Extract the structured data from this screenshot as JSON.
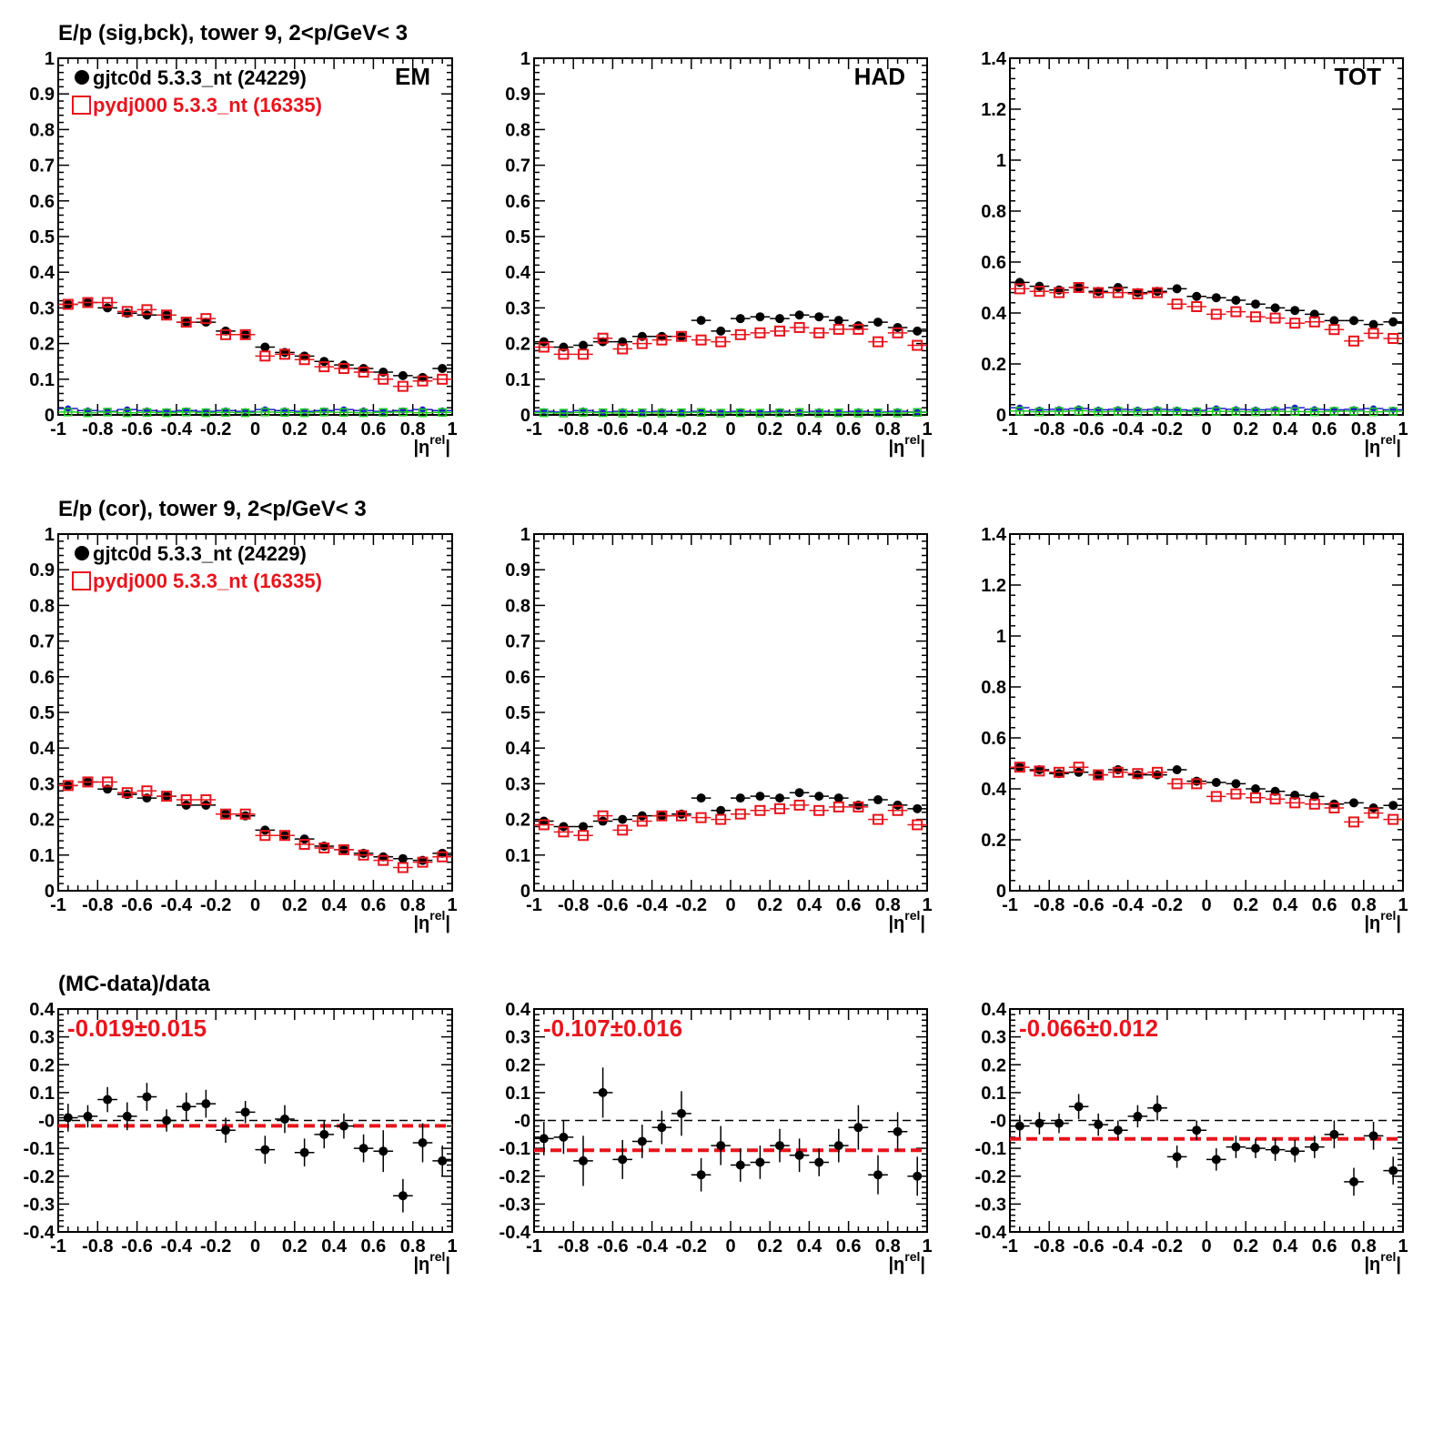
{
  "colors": {
    "data": "#000000",
    "mc": "#e8141c",
    "blue": "#1e1ecf",
    "green": "#22cc22",
    "frame": "#000000"
  },
  "row_titles": [
    "E/p (sig,bck), tower 9,  2<p/GeV< 3",
    "E/p (cor), tower 9,  2<p/GeV< 3",
    "(MC-data)/data"
  ],
  "legend": {
    "data": "gjtc0d 5.3.3_nt (24229)",
    "mc": "pydj000 5.3.3_nt (16335)"
  },
  "x_axis": {
    "tick_labels": [
      "-1",
      "-0.8",
      "-0.6",
      "-0.4",
      "-0.2",
      "0",
      "0.2",
      "0.4",
      "0.6",
      "0.8",
      "1"
    ],
    "title": "|η",
    "title_sup": "rel",
    "title_end": "|"
  },
  "chart_data": [
    {
      "id": "sig-bck-EM",
      "type": "scatter",
      "panel_label": "EM",
      "ylim": [
        0,
        1
      ],
      "ytick_labels": [
        "0",
        "0.1",
        "0.2",
        "0.3",
        "0.4",
        "0.5",
        "0.6",
        "0.7",
        "0.8",
        "0.9",
        "1"
      ],
      "x": [
        -0.95,
        -0.85,
        -0.75,
        -0.65,
        -0.55,
        -0.45,
        -0.35,
        -0.25,
        -0.15,
        -0.05,
        0.05,
        0.15,
        0.25,
        0.35,
        0.45,
        0.55,
        0.65,
        0.75,
        0.85,
        0.95
      ],
      "series": [
        {
          "name": "gjtc0d 5.3.3_nt (24229)",
          "values": [
            0.31,
            0.315,
            0.3,
            0.285,
            0.28,
            0.28,
            0.26,
            0.26,
            0.235,
            0.225,
            0.19,
            0.175,
            0.165,
            0.15,
            0.14,
            0.13,
            0.12,
            0.11,
            0.105,
            0.13
          ]
        },
        {
          "name": "pydj000 5.3.3_nt (16335)",
          "values": [
            0.31,
            0.315,
            0.315,
            0.29,
            0.295,
            0.28,
            0.26,
            0.27,
            0.225,
            0.225,
            0.165,
            0.17,
            0.155,
            0.135,
            0.13,
            0.12,
            0.1,
            0.08,
            0.095,
            0.1
          ]
        },
        {
          "values": [
            0.018,
            0.012,
            0.01,
            0.015,
            0.012,
            0.01,
            0.012,
            0.01,
            0.012,
            0.01,
            0.015,
            0.012,
            0.01,
            0.012,
            0.015,
            0.012,
            0.01,
            0.012,
            0.015,
            0.012
          ]
        },
        {
          "values": [
            0.008,
            0.006,
            0.008,
            0.006,
            0.007,
            0.006,
            0.008,
            0.006,
            0.007,
            0.006,
            0.008,
            0.007,
            0.006,
            0.008,
            0.007,
            0.006,
            0.007,
            0.008,
            0.006,
            0.007
          ]
        }
      ]
    },
    {
      "id": "sig-bck-HAD",
      "type": "scatter",
      "panel_label": "HAD",
      "ylim": [
        0,
        1
      ],
      "ytick_labels": [
        "0",
        "0.1",
        "0.2",
        "0.3",
        "0.4",
        "0.5",
        "0.6",
        "0.7",
        "0.8",
        "0.9",
        "1"
      ],
      "x": [
        -0.95,
        -0.85,
        -0.75,
        -0.65,
        -0.55,
        -0.45,
        -0.35,
        -0.25,
        -0.15,
        -0.05,
        0.05,
        0.15,
        0.25,
        0.35,
        0.45,
        0.55,
        0.65,
        0.75,
        0.85,
        0.95
      ],
      "series": [
        {
          "name": "gjtc0d 5.3.3_nt (24229)",
          "values": [
            0.205,
            0.19,
            0.195,
            0.205,
            0.205,
            0.22,
            0.22,
            0.22,
            0.265,
            0.235,
            0.27,
            0.275,
            0.27,
            0.28,
            0.275,
            0.265,
            0.25,
            0.26,
            0.245,
            0.235
          ]
        },
        {
          "name": "pydj000 5.3.3_nt (16335)",
          "values": [
            0.19,
            0.17,
            0.17,
            0.215,
            0.185,
            0.2,
            0.21,
            0.22,
            0.21,
            0.205,
            0.225,
            0.23,
            0.235,
            0.245,
            0.23,
            0.24,
            0.24,
            0.205,
            0.23,
            0.195
          ]
        },
        {
          "values": [
            0.01,
            0.008,
            0.012,
            0.008,
            0.01,
            0.008,
            0.01,
            0.008,
            0.01,
            0.008,
            0.01,
            0.008,
            0.01,
            0.008,
            0.01,
            0.008,
            0.01,
            0.008,
            0.01,
            0.008
          ]
        },
        {
          "values": [
            0.006,
            0.005,
            0.007,
            0.006,
            0.005,
            0.006,
            0.005,
            0.006,
            0.007,
            0.005,
            0.006,
            0.005,
            0.006,
            0.007,
            0.005,
            0.006,
            0.005,
            0.006,
            0.005,
            0.007
          ]
        }
      ]
    },
    {
      "id": "sig-bck-TOT",
      "type": "scatter",
      "panel_label": "TOT",
      "ylim": [
        0,
        1.4
      ],
      "ytick_labels": [
        "0",
        "0.2",
        "0.4",
        "0.6",
        "0.8",
        "1",
        "1.2",
        "1.4"
      ],
      "x": [
        -0.95,
        -0.85,
        -0.75,
        -0.65,
        -0.55,
        -0.45,
        -0.35,
        -0.25,
        -0.15,
        -0.05,
        0.05,
        0.15,
        0.25,
        0.35,
        0.45,
        0.55,
        0.65,
        0.75,
        0.85,
        0.95
      ],
      "series": [
        {
          "name": "gjtc0d 5.3.3_nt (24229)",
          "values": [
            0.52,
            0.505,
            0.49,
            0.5,
            0.485,
            0.5,
            0.48,
            0.485,
            0.495,
            0.465,
            0.46,
            0.45,
            0.435,
            0.42,
            0.41,
            0.395,
            0.37,
            0.37,
            0.355,
            0.365
          ]
        },
        {
          "name": "pydj000 5.3.3_nt (16335)",
          "values": [
            0.495,
            0.485,
            0.48,
            0.5,
            0.48,
            0.48,
            0.475,
            0.48,
            0.435,
            0.425,
            0.395,
            0.405,
            0.385,
            0.38,
            0.36,
            0.365,
            0.335,
            0.29,
            0.32,
            0.3
          ]
        },
        {
          "values": [
            0.028,
            0.02,
            0.022,
            0.025,
            0.02,
            0.022,
            0.02,
            0.022,
            0.02,
            0.018,
            0.025,
            0.022,
            0.02,
            0.022,
            0.028,
            0.022,
            0.02,
            0.022,
            0.025,
            0.02
          ]
        },
        {
          "values": [
            0.015,
            0.012,
            0.014,
            0.016,
            0.012,
            0.014,
            0.012,
            0.014,
            0.013,
            0.012,
            0.014,
            0.013,
            0.012,
            0.014,
            0.013,
            0.012,
            0.014,
            0.015,
            0.012,
            0.014
          ]
        }
      ]
    },
    {
      "id": "cor-EM",
      "type": "scatter",
      "panel_label": "",
      "ylim": [
        0,
        1
      ],
      "ytick_labels": [
        "0",
        "0.1",
        "0.2",
        "0.3",
        "0.4",
        "0.5",
        "0.6",
        "0.7",
        "0.8",
        "0.9",
        "1"
      ],
      "x": [
        -0.95,
        -0.85,
        -0.75,
        -0.65,
        -0.55,
        -0.45,
        -0.35,
        -0.25,
        -0.15,
        -0.05,
        0.05,
        0.15,
        0.25,
        0.35,
        0.45,
        0.55,
        0.65,
        0.75,
        0.85,
        0.95
      ],
      "series": [
        {
          "name": "gjtc0d 5.3.3_nt (24229)",
          "values": [
            0.295,
            0.305,
            0.285,
            0.27,
            0.26,
            0.265,
            0.24,
            0.24,
            0.215,
            0.21,
            0.17,
            0.155,
            0.145,
            0.125,
            0.115,
            0.105,
            0.095,
            0.09,
            0.085,
            0.105
          ]
        },
        {
          "name": "pydj000 5.3.3_nt (16335)",
          "values": [
            0.295,
            0.305,
            0.305,
            0.275,
            0.28,
            0.265,
            0.255,
            0.255,
            0.215,
            0.215,
            0.155,
            0.155,
            0.13,
            0.12,
            0.115,
            0.1,
            0.085,
            0.065,
            0.08,
            0.095
          ]
        }
      ]
    },
    {
      "id": "cor-HAD",
      "type": "scatter",
      "panel_label": "",
      "ylim": [
        0,
        1
      ],
      "ytick_labels": [
        "0",
        "0.1",
        "0.2",
        "0.3",
        "0.4",
        "0.5",
        "0.6",
        "0.7",
        "0.8",
        "0.9",
        "1"
      ],
      "x": [
        -0.95,
        -0.85,
        -0.75,
        -0.65,
        -0.55,
        -0.45,
        -0.35,
        -0.25,
        -0.15,
        -0.05,
        0.05,
        0.15,
        0.25,
        0.35,
        0.45,
        0.55,
        0.65,
        0.75,
        0.85,
        0.95
      ],
      "series": [
        {
          "name": "gjtc0d 5.3.3_nt (24229)",
          "values": [
            0.195,
            0.18,
            0.18,
            0.195,
            0.2,
            0.21,
            0.21,
            0.215,
            0.26,
            0.225,
            0.26,
            0.265,
            0.26,
            0.275,
            0.265,
            0.26,
            0.24,
            0.255,
            0.24,
            0.23
          ]
        },
        {
          "name": "pydj000 5.3.3_nt (16335)",
          "values": [
            0.185,
            0.165,
            0.155,
            0.21,
            0.17,
            0.195,
            0.21,
            0.21,
            0.205,
            0.2,
            0.215,
            0.225,
            0.23,
            0.24,
            0.225,
            0.235,
            0.235,
            0.2,
            0.225,
            0.185
          ]
        }
      ]
    },
    {
      "id": "cor-TOT",
      "type": "scatter",
      "panel_label": "",
      "ylim": [
        0,
        1.4
      ],
      "ytick_labels": [
        "0",
        "0.2",
        "0.4",
        "0.6",
        "0.8",
        "1",
        "1.2",
        "1.4"
      ],
      "x": [
        -0.95,
        -0.85,
        -0.75,
        -0.65,
        -0.55,
        -0.45,
        -0.35,
        -0.25,
        -0.15,
        -0.05,
        0.05,
        0.15,
        0.25,
        0.35,
        0.45,
        0.55,
        0.65,
        0.75,
        0.85,
        0.95
      ],
      "series": [
        {
          "name": "gjtc0d 5.3.3_nt (24229)",
          "values": [
            0.485,
            0.475,
            0.46,
            0.465,
            0.455,
            0.475,
            0.455,
            0.455,
            0.475,
            0.43,
            0.425,
            0.42,
            0.4,
            0.39,
            0.375,
            0.37,
            0.34,
            0.345,
            0.325,
            0.335
          ]
        },
        {
          "name": "pydj000 5.3.3_nt (16335)",
          "values": [
            0.485,
            0.47,
            0.465,
            0.485,
            0.455,
            0.465,
            0.46,
            0.465,
            0.42,
            0.42,
            0.37,
            0.38,
            0.365,
            0.36,
            0.345,
            0.34,
            0.325,
            0.27,
            0.305,
            0.28
          ]
        }
      ]
    },
    {
      "id": "ratio-EM",
      "type": "scatter",
      "fit_value": -0.019,
      "annotation": "-0.019±0.015",
      "ylim": [
        -0.4,
        0.4
      ],
      "ytick_labels": [
        "-0.4",
        "-0.3",
        "-0.2",
        "-0.1",
        "-0",
        "0.1",
        "0.2",
        "0.3",
        "0.4"
      ],
      "x": [
        -0.95,
        -0.85,
        -0.75,
        -0.65,
        -0.55,
        -0.45,
        -0.35,
        -0.25,
        -0.15,
        -0.05,
        0.05,
        0.15,
        0.25,
        0.35,
        0.45,
        0.55,
        0.65,
        0.75,
        0.85,
        0.95
      ],
      "values": [
        0.01,
        0.015,
        0.075,
        0.015,
        0.085,
        0.0,
        0.05,
        0.06,
        -0.035,
        0.03,
        -0.105,
        0.005,
        -0.115,
        -0.05,
        -0.02,
        -0.1,
        -0.11,
        -0.27,
        -0.08,
        -0.145
      ],
      "errors": [
        0.05,
        0.04,
        0.045,
        0.05,
        0.05,
        0.04,
        0.05,
        0.05,
        0.045,
        0.04,
        0.05,
        0.05,
        0.05,
        0.05,
        0.045,
        0.05,
        0.075,
        0.06,
        0.07,
        0.055
      ]
    },
    {
      "id": "ratio-HAD",
      "type": "scatter",
      "fit_value": -0.107,
      "annotation": "-0.107±0.016",
      "ylim": [
        -0.4,
        0.4
      ],
      "ytick_labels": [
        "-0.4",
        "-0.3",
        "-0.2",
        "-0.1",
        "-0",
        "0.1",
        "0.2",
        "0.3",
        "0.4"
      ],
      "x": [
        -0.95,
        -0.85,
        -0.75,
        -0.65,
        -0.55,
        -0.45,
        -0.35,
        -0.25,
        -0.15,
        -0.05,
        0.05,
        0.15,
        0.25,
        0.35,
        0.45,
        0.55,
        0.65,
        0.75,
        0.85,
        0.95
      ],
      "values": [
        -0.065,
        -0.06,
        -0.145,
        0.1,
        -0.14,
        -0.075,
        -0.025,
        0.025,
        -0.195,
        -0.09,
        -0.16,
        -0.15,
        -0.09,
        -0.125,
        -0.15,
        -0.09,
        -0.025,
        -0.195,
        -0.04,
        -0.2
      ],
      "errors": [
        0.06,
        0.06,
        0.09,
        0.09,
        0.07,
        0.06,
        0.06,
        0.08,
        0.06,
        0.07,
        0.06,
        0.06,
        0.06,
        0.06,
        0.05,
        0.06,
        0.08,
        0.07,
        0.07,
        0.07
      ]
    },
    {
      "id": "ratio-TOT",
      "type": "scatter",
      "fit_value": -0.066,
      "annotation": "-0.066±0.012",
      "ylim": [
        -0.4,
        0.4
      ],
      "ytick_labels": [
        "-0.4",
        "-0.3",
        "-0.2",
        "-0.1",
        "-0",
        "0.1",
        "0.2",
        "0.3",
        "0.4"
      ],
      "x": [
        -0.95,
        -0.85,
        -0.75,
        -0.65,
        -0.55,
        -0.45,
        -0.35,
        -0.25,
        -0.15,
        -0.05,
        0.05,
        0.15,
        0.25,
        0.35,
        0.45,
        0.55,
        0.65,
        0.75,
        0.85,
        0.95
      ],
      "values": [
        -0.02,
        -0.01,
        -0.01,
        0.05,
        -0.015,
        -0.035,
        0.015,
        0.045,
        -0.13,
        -0.035,
        -0.14,
        -0.095,
        -0.1,
        -0.105,
        -0.11,
        -0.095,
        -0.05,
        -0.22,
        -0.055,
        -0.18
      ],
      "errors": [
        0.04,
        0.04,
        0.035,
        0.045,
        0.04,
        0.035,
        0.04,
        0.045,
        0.04,
        0.035,
        0.04,
        0.04,
        0.035,
        0.04,
        0.04,
        0.04,
        0.05,
        0.05,
        0.05,
        0.05
      ]
    }
  ]
}
